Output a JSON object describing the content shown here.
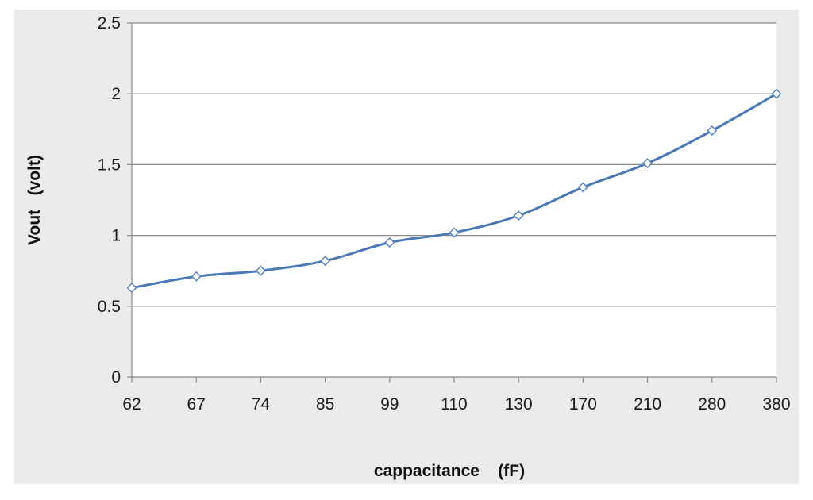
{
  "chart_data": {
    "type": "line",
    "xlabel": "cappacitance    (fF)",
    "ylabel": "Vout   (volt)",
    "categories": [
      "62",
      "67",
      "74",
      "85",
      "99",
      "110",
      "130",
      "170",
      "210",
      "280",
      "380"
    ],
    "series": [
      {
        "values": [
          0.63,
          0.71,
          0.75,
          0.82,
          0.95,
          1.02,
          1.14,
          1.34,
          1.51,
          1.74,
          2.0
        ],
        "color": "#4a79b4",
        "marker": "diamond"
      }
    ],
    "yticks": [
      "0",
      "0.5",
      "1",
      "1.5",
      "2",
      "2.5"
    ],
    "ylim": [
      0,
      2.5
    ],
    "grid": "horizontal",
    "legend": "none"
  }
}
